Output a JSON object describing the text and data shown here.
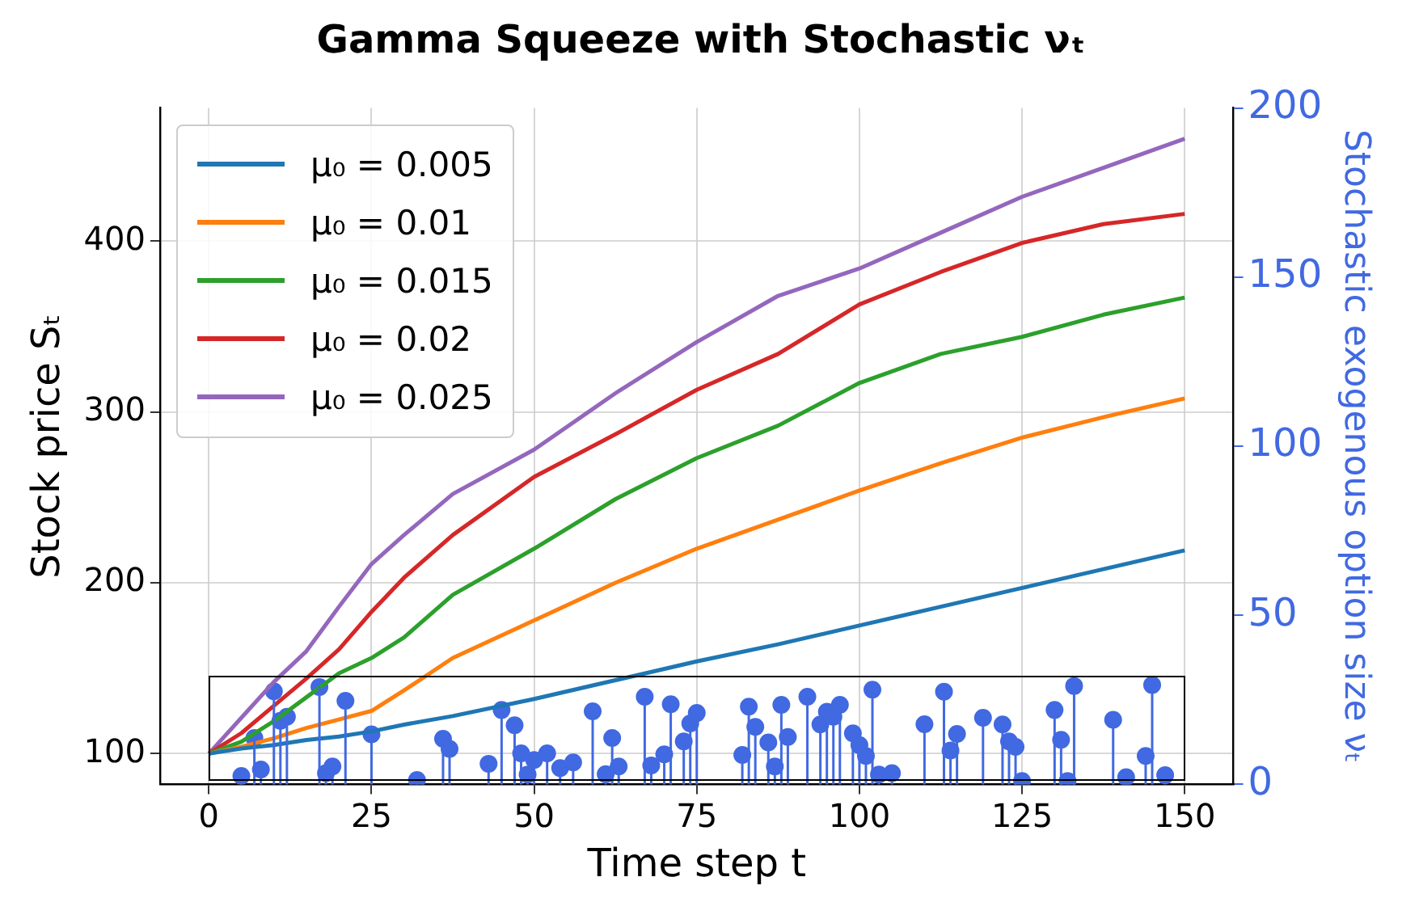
{
  "chart_data": {
    "type": "line",
    "title": "Gamma Squeeze with Stochastic νₜ",
    "xlabel": "Time step t",
    "ylabel": "Stock price Sₜ",
    "y2label": "Stochastic exogenous option size νₜ",
    "x": [
      0,
      5,
      10,
      15,
      20,
      25,
      30,
      37.5,
      50,
      62.5,
      75,
      87.5,
      100,
      112.5,
      125,
      137.5,
      150
    ],
    "xlim": [
      -7.5,
      157.5
    ],
    "xticks": [
      0,
      25,
      50,
      75,
      100,
      125,
      150
    ],
    "ylim": [
      82,
      478
    ],
    "yticks": [
      100,
      200,
      300,
      400
    ],
    "y2lim": [
      0,
      200
    ],
    "y2ticks": [
      0,
      50,
      100,
      150,
      200
    ],
    "grid": true,
    "legend": "top left",
    "line_style": "solid",
    "series": [
      {
        "name": "μ₀ = 0.005",
        "color": "#1f77b4",
        "values": [
          100,
          103,
          105,
          108,
          110,
          113,
          117,
          122,
          132,
          143,
          154,
          164,
          175,
          186,
          197,
          208,
          219
        ]
      },
      {
        "name": "μ₀ = 0.01",
        "color": "#ff7f0e",
        "values": [
          100,
          104,
          109,
          115,
          120,
          125,
          137,
          156,
          178,
          200,
          220,
          237,
          254,
          270,
          285,
          297,
          308
        ]
      },
      {
        "name": "μ₀ = 0.015",
        "color": "#2ca02c",
        "values": [
          100,
          107,
          119,
          133,
          147,
          156,
          168,
          193,
          220,
          249,
          273,
          292,
          317,
          334,
          344,
          357,
          367
        ]
      },
      {
        "name": "μ₀ = 0.02",
        "color": "#d62728",
        "values": [
          100,
          112,
          128,
          144,
          161,
          183,
          203,
          228,
          262,
          287,
          313,
          334,
          363,
          382,
          399,
          410,
          416
        ]
      },
      {
        "name": "μ₀ = 0.025",
        "color": "#9467bd",
        "values": [
          100,
          121,
          142,
          160,
          186,
          211,
          228,
          252,
          278,
          311,
          341,
          368,
          384,
          405,
          426,
          443,
          460
        ]
      },
      {
        "type": "lollipop",
        "axis": "y2",
        "marker": "circle",
        "color": "#4169e1",
        "x": [
          5,
          7,
          8,
          10,
          11,
          12,
          17,
          18,
          19,
          21,
          25,
          32,
          36,
          37,
          43,
          45,
          47,
          48,
          49,
          50,
          52,
          54,
          56,
          59,
          61,
          62,
          63,
          67,
          68,
          70,
          71,
          73,
          74,
          75,
          82,
          83,
          84,
          86,
          87,
          88,
          89,
          92,
          94,
          95,
          96,
          97,
          99,
          100,
          101,
          102,
          103,
          105,
          110,
          113,
          114,
          115,
          119,
          122,
          123,
          124,
          125,
          130,
          131,
          132,
          133,
          139,
          141,
          144,
          145,
          147
        ],
        "values": [
          2.5,
          13.7,
          4.4,
          27.5,
          18.8,
          20,
          28.8,
          3.3,
          5.3,
          24.7,
          14.8,
          1.3,
          13.5,
          10.5,
          6.1,
          22,
          17.5,
          9.2,
          2.9,
          7.2,
          9.2,
          4.8,
          6.5,
          21.6,
          3,
          13.7,
          5.3,
          25.9,
          5.6,
          8.9,
          23.7,
          12.7,
          18,
          21.1,
          8.7,
          23,
          17,
          12.4,
          5.3,
          23.5,
          14,
          25.9,
          17.7,
          21.5,
          20,
          23.5,
          15.1,
          11.6,
          8.4,
          28,
          2.9,
          3.3,
          17.8,
          27.4,
          10,
          14.9,
          19.7,
          17.7,
          12.7,
          11.1,
          1,
          22,
          13.2,
          1,
          29.1,
          19.1,
          2.1,
          8.4,
          29.4,
          2.7
        ]
      }
    ]
  }
}
